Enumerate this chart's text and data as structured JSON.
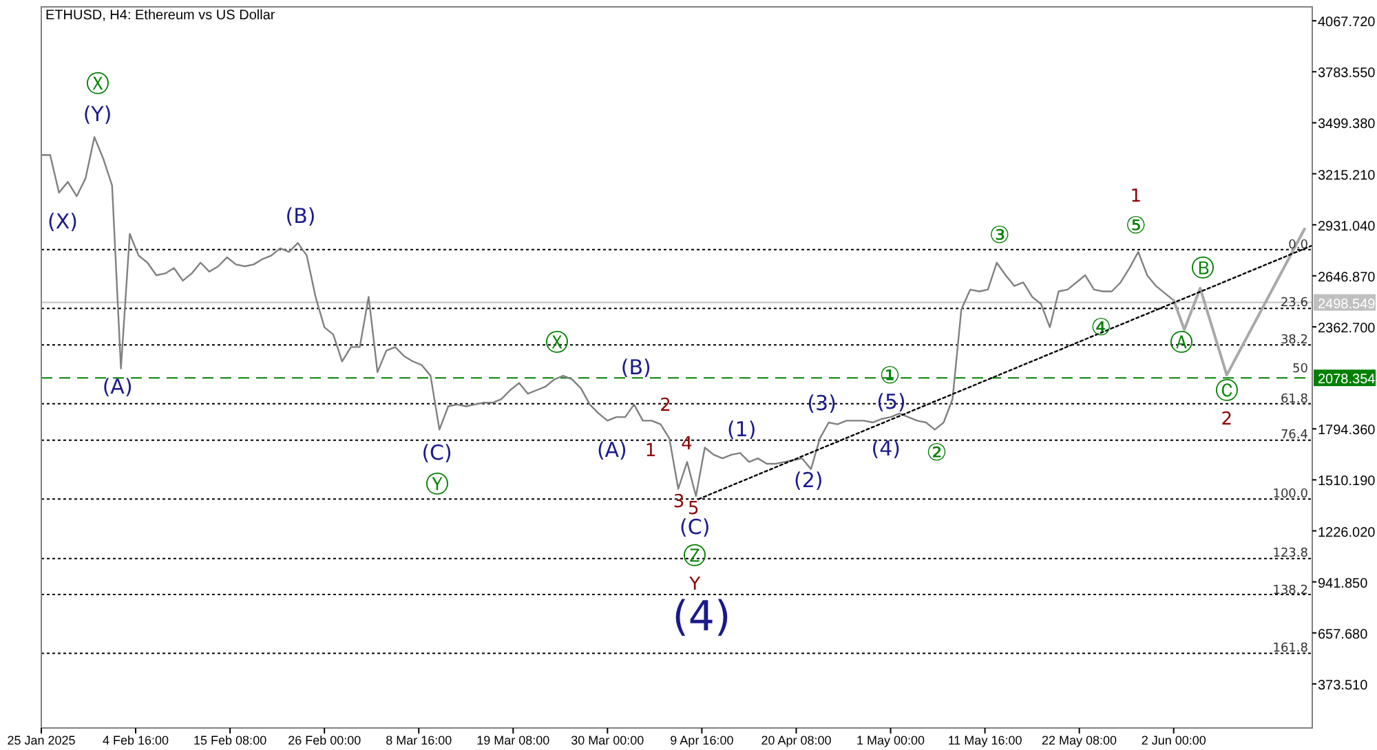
{
  "chart_data": {
    "type": "line",
    "title": "ETHUSD, H4:  Ethereum vs US Dollar",
    "x": [
      "2025-01-25",
      "2025-01-26",
      "2025-01-27",
      "2025-01-28",
      "2025-01-29",
      "2025-01-30",
      "2025-01-31",
      "2025-02-01",
      "2025-02-02",
      "2025-02-03",
      "2025-02-04",
      "2025-02-05",
      "2025-02-06",
      "2025-02-07",
      "2025-02-08",
      "2025-02-09",
      "2025-02-10",
      "2025-02-11",
      "2025-02-12",
      "2025-02-13",
      "2025-02-14",
      "2025-02-15",
      "2025-02-16",
      "2025-02-17",
      "2025-02-18",
      "2025-02-19",
      "2025-02-20",
      "2025-02-21",
      "2025-02-22",
      "2025-02-23",
      "2025-02-24",
      "2025-02-25",
      "2025-02-26",
      "2025-02-27",
      "2025-02-28",
      "2025-03-01",
      "2025-03-02",
      "2025-03-03",
      "2025-03-04",
      "2025-03-05",
      "2025-03-06",
      "2025-03-07",
      "2025-03-08",
      "2025-03-09",
      "2025-03-10",
      "2025-03-11",
      "2025-03-12",
      "2025-03-13",
      "2025-03-14",
      "2025-03-15",
      "2025-03-16",
      "2025-03-17",
      "2025-03-18",
      "2025-03-19",
      "2025-03-20",
      "2025-03-21",
      "2025-03-22",
      "2025-03-23",
      "2025-03-24",
      "2025-03-25",
      "2025-03-26",
      "2025-03-27",
      "2025-03-28",
      "2025-03-29",
      "2025-03-30",
      "2025-03-31",
      "2025-04-01",
      "2025-04-02",
      "2025-04-03",
      "2025-04-04",
      "2025-04-05",
      "2025-04-06",
      "2025-04-07",
      "2025-04-08",
      "2025-04-09",
      "2025-04-10",
      "2025-04-11",
      "2025-04-12",
      "2025-04-13",
      "2025-04-14",
      "2025-04-15",
      "2025-04-16",
      "2025-04-17",
      "2025-04-18",
      "2025-04-19",
      "2025-04-20",
      "2025-04-21",
      "2025-04-22",
      "2025-04-23",
      "2025-04-24",
      "2025-04-25",
      "2025-04-26",
      "2025-04-27",
      "2025-04-28",
      "2025-04-29",
      "2025-04-30",
      "2025-05-01",
      "2025-05-02",
      "2025-05-03",
      "2025-05-04",
      "2025-05-05",
      "2025-05-06",
      "2025-05-07",
      "2025-05-08",
      "2025-05-09",
      "2025-05-10",
      "2025-05-11",
      "2025-05-12",
      "2025-05-13",
      "2025-05-14",
      "2025-05-15",
      "2025-05-16",
      "2025-05-17",
      "2025-05-18",
      "2025-05-19",
      "2025-05-20",
      "2025-05-21",
      "2025-05-22",
      "2025-05-23",
      "2025-05-24",
      "2025-05-25",
      "2025-05-26",
      "2025-05-27",
      "2025-05-28",
      "2025-05-29",
      "2025-05-30",
      "2025-05-31",
      "2025-06-01",
      "2025-06-02"
    ],
    "series": [
      {
        "color": "#808080",
        "values": [
          3320,
          3320,
          3110,
          3170,
          3090,
          3190,
          3420,
          3300,
          3150,
          2130,
          2880,
          2760,
          2720,
          2650,
          2660,
          2690,
          2620,
          2660,
          2720,
          2670,
          2700,
          2750,
          2710,
          2700,
          2710,
          2740,
          2760,
          2800,
          2780,
          2830,
          2760,
          2530,
          2360,
          2320,
          2170,
          2250,
          2250,
          2530,
          2110,
          2230,
          2250,
          2200,
          2170,
          2150,
          2090,
          1790,
          1920,
          1930,
          1920,
          1930,
          1940,
          1940,
          1960,
          2010,
          2050,
          1990,
          2010,
          2030,
          2070,
          2090,
          2070,
          2020,
          1930,
          1880,
          1840,
          1860,
          1860,
          1930,
          1840,
          1840,
          1820,
          1740,
          1460,
          1610,
          1420,
          1690,
          1650,
          1630,
          1650,
          1660,
          1610,
          1630,
          1600,
          1600,
          1610,
          1620,
          1630,
          1570,
          1740,
          1830,
          1820,
          1840,
          1840,
          1840,
          1830,
          1850,
          1860,
          1880,
          1860,
          1840,
          1830,
          1790,
          1830,
          1960,
          2460,
          2570,
          2560,
          2570,
          2720,
          2650,
          2590,
          2610,
          2530,
          2490,
          2360,
          2560,
          2570,
          2610,
          2650,
          2570,
          2560,
          2560,
          2610,
          2690,
          2780,
          2650,
          2590,
          2550,
          2510
        ]
      },
      {
        "color": "#a9a9a9",
        "x": [
          "2025-06-02",
          "2025-06-03T05:00",
          "2025-06-05",
          "2025-06-08",
          "2025-06-16T19:00"
        ],
        "values": [
          2510,
          2347,
          2578,
          2094,
          2908
        ]
      },
      {
        "color": "#000000",
        "line_style": "dotted",
        "x": [
          "2025-04-09T07:00",
          "2025-06-17T16:00"
        ],
        "values": [
          1403,
          2816
        ]
      }
    ],
    "xlim": [
      "2025-01-25T00:00",
      "2025-06-17T16:00"
    ],
    "xticks": [
      {
        "value": "2025-01-25",
        "label": "25 Jan 2025"
      },
      {
        "value": "2025-02-04T16:00",
        "label": "4 Feb 16:00"
      },
      {
        "value": "2025-02-15T08:00",
        "label": "15 Feb 08:00"
      },
      {
        "value": "2025-02-26",
        "label": "26 Feb 00:00"
      },
      {
        "value": "2025-03-08T16:00",
        "label": "8 Mar 16:00"
      },
      {
        "value": "2025-03-19T08:00",
        "label": "19 Mar 08:00"
      },
      {
        "value": "2025-03-30",
        "label": "30 Mar 00:00"
      },
      {
        "value": "2025-04-09T16:00",
        "label": "9 Apr 16:00"
      },
      {
        "value": "2025-04-20T08:00",
        "label": "20 Apr 08:00"
      },
      {
        "value": "2025-05-01",
        "label": "1 May 00:00"
      },
      {
        "value": "2025-05-11T16:00",
        "label": "11 May 16:00"
      },
      {
        "value": "2025-05-22T08:00",
        "label": "22 May 08:00"
      },
      {
        "value": "2025-06-02",
        "label": "2 Jun 00:00"
      }
    ],
    "ylim": [
      128,
      4145
    ],
    "yticks": [
      {
        "value": 4067.72,
        "label": "4067.720"
      },
      {
        "value": 3783.55,
        "label": "3783.550"
      },
      {
        "value": 3499.38,
        "label": "3499.380"
      },
      {
        "value": 3215.21,
        "label": "3215.210"
      },
      {
        "value": 2931.04,
        "label": "2931.040"
      },
      {
        "value": 2646.87,
        "label": "2646.870"
      },
      {
        "value": 2362.7,
        "label": "2362.700"
      },
      {
        "value": 1794.36,
        "label": "1794.360"
      },
      {
        "value": 1510.19,
        "label": "1510.190"
      },
      {
        "value": 1226.02,
        "label": "1226.020"
      },
      {
        "value": 941.85,
        "label": "941.850"
      },
      {
        "value": 657.68,
        "label": "657.680"
      },
      {
        "value": 373.51,
        "label": "373.510"
      }
    ],
    "ref_lines": [
      {
        "axis": "y",
        "value": 2078.354,
        "label": "2078.354",
        "color": "#008000",
        "line_style": "dashed"
      },
      {
        "axis": "y",
        "value": 2498.549,
        "label": "2498.549",
        "color": "#c0c0c0",
        "line_style": "solid"
      },
      {
        "axis": "y",
        "value": 2793,
        "line_style": "dotted"
      },
      {
        "axis": "y",
        "value": 2465,
        "line_style": "dotted"
      },
      {
        "axis": "y",
        "value": 2262,
        "line_style": "dotted"
      },
      {
        "axis": "y",
        "value": 1934,
        "line_style": "dotted"
      },
      {
        "axis": "y",
        "value": 1731,
        "line_style": "dotted"
      },
      {
        "axis": "y",
        "value": 1403,
        "line_style": "dotted"
      },
      {
        "axis": "y",
        "value": 1072,
        "line_style": "dotted"
      },
      {
        "axis": "y",
        "value": 872,
        "line_style": "dotted"
      },
      {
        "axis": "y",
        "value": 544,
        "line_style": "dotted"
      }
    ],
    "annotations": [
      "Ⓧ",
      "(Y)",
      "(X)",
      "(A)",
      "(B)",
      "(C)",
      "Ⓨ",
      "Ⓧ",
      "(A)",
      "(B)",
      "1",
      "2",
      "3",
      "4",
      "5",
      "(C)",
      "Ⓩ",
      "Y",
      "(4)",
      "(1)",
      "(2)",
      "(3)",
      "(4)",
      "(5)",
      "①",
      "②",
      "③",
      "④",
      "⑤",
      "1",
      "Ⓐ",
      "Ⓑ",
      "Ⓒ",
      "2",
      "0.0",
      "23.6",
      "38.2",
      "50",
      "61.8",
      "76.4",
      "100.0",
      "123.8",
      "138.2",
      "161.8"
    ]
  }
}
